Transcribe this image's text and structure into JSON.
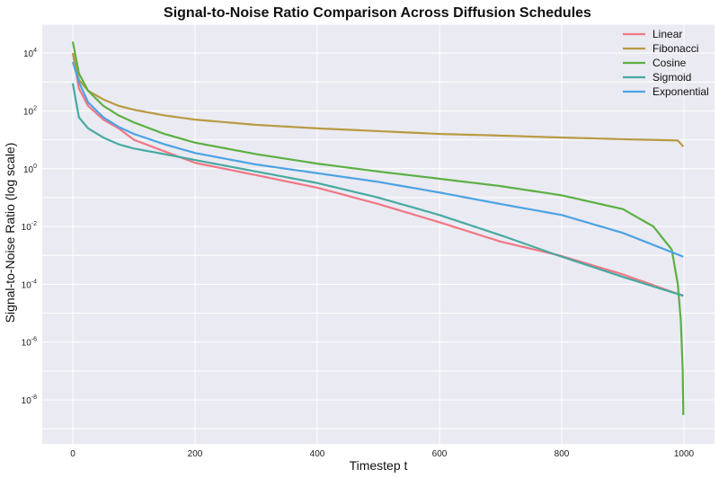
{
  "chart_data": {
    "type": "line",
    "title": "Signal-to-Noise Ratio Comparison Across Diffusion Schedules",
    "xlabel": "Timestep t",
    "ylabel": "Signal-to-Noise Ratio (log scale)",
    "xlim": [
      -50,
      1050
    ],
    "ylim": [
      3e-10,
      100000.0
    ],
    "yscale": "log",
    "xticks": [
      0,
      200,
      400,
      600,
      800,
      1000
    ],
    "xtick_labels": [
      "0",
      "200",
      "400",
      "600",
      "800",
      "1000"
    ],
    "yticks": [
      1e-08,
      1e-06,
      0.0001,
      0.01,
      1,
      100.0,
      10000.0
    ],
    "ytick_labels": [
      {
        "base": "10",
        "exp": "-8"
      },
      {
        "base": "10",
        "exp": "-6"
      },
      {
        "base": "10",
        "exp": "-4"
      },
      {
        "base": "10",
        "exp": "-2"
      },
      {
        "base": "10",
        "exp": "0"
      },
      {
        "base": "10",
        "exp": "2"
      },
      {
        "base": "10",
        "exp": "4"
      }
    ],
    "grid": true,
    "legend_position": "top-right",
    "background": "#eaeaf2",
    "series": [
      {
        "name": "Linear",
        "color": "#f07785",
        "x": [
          0,
          10,
          25,
          50,
          75,
          100,
          150,
          200,
          300,
          400,
          500,
          600,
          700,
          800,
          900,
          999
        ],
        "y": [
          9999,
          600,
          150,
          50,
          25,
          10,
          4,
          1.6,
          0.6,
          0.22,
          0.06,
          0.014,
          0.003,
          0.00095,
          0.00022,
          4e-05
        ]
      },
      {
        "name": "Fibonacci",
        "color": "#b89a42",
        "x": [
          0,
          10,
          25,
          50,
          75,
          100,
          150,
          200,
          300,
          400,
          500,
          600,
          700,
          800,
          900,
          990,
          999
        ],
        "y": [
          9999,
          1200,
          500,
          250,
          150,
          110,
          70,
          50,
          33,
          25,
          20,
          16,
          14,
          12,
          10.5,
          9.5,
          5.8
        ]
      },
      {
        "name": "Cosine",
        "color": "#5bb043",
        "x": [
          0,
          10,
          25,
          50,
          75,
          100,
          150,
          200,
          300,
          400,
          500,
          600,
          700,
          800,
          900,
          950,
          980,
          990,
          995,
          998,
          999
        ],
        "y": [
          25000,
          2000,
          500,
          150,
          70,
          40,
          16,
          8,
          3.2,
          1.5,
          0.8,
          0.45,
          0.25,
          0.12,
          0.04,
          0.01,
          0.0016,
          0.0001,
          5e-06,
          1e-07,
          3e-09
        ]
      },
      {
        "name": "Sigmoid",
        "color": "#47aaa0",
        "x": [
          0,
          10,
          25,
          50,
          75,
          100,
          150,
          200,
          300,
          400,
          500,
          600,
          700,
          800,
          900,
          999
        ],
        "y": [
          900,
          60,
          25,
          12,
          7,
          5,
          3.2,
          2,
          0.8,
          0.32,
          0.1,
          0.025,
          0.005,
          0.0009,
          0.00018,
          4e-05
        ]
      },
      {
        "name": "Exponential",
        "color": "#4ba3e3",
        "x": [
          0,
          10,
          25,
          50,
          75,
          100,
          150,
          200,
          300,
          400,
          500,
          600,
          700,
          800,
          900,
          999
        ],
        "y": [
          5000,
          1000,
          200,
          60,
          28,
          16,
          7,
          3.5,
          1.4,
          0.7,
          0.35,
          0.15,
          0.06,
          0.025,
          0.006,
          0.0009
        ]
      }
    ]
  }
}
